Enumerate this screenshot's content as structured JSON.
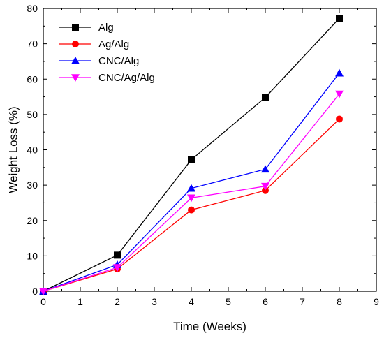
{
  "chart_data": {
    "type": "line",
    "title": "",
    "xlabel": "Time (Weeks)",
    "ylabel": "Weight Loss (%)",
    "xlim": [
      0,
      9
    ],
    "ylim": [
      0,
      80
    ],
    "x_ticks": [
      0,
      1,
      2,
      3,
      4,
      5,
      6,
      7,
      8,
      9
    ],
    "y_ticks": [
      0,
      10,
      20,
      30,
      40,
      50,
      60,
      70,
      80
    ],
    "grid": false,
    "legend_position": "top-left",
    "series": [
      {
        "name": "Alg",
        "color": "#000000",
        "marker": "square",
        "x": [
          0,
          2,
          4,
          6,
          8
        ],
        "y": [
          0,
          10.2,
          37.2,
          54.8,
          77.2
        ]
      },
      {
        "name": "Ag/Alg",
        "color": "#ff0000",
        "marker": "circle",
        "x": [
          0,
          2,
          4,
          6,
          8
        ],
        "y": [
          0,
          6.3,
          23.0,
          28.5,
          48.7
        ]
      },
      {
        "name": "CNC/Alg",
        "color": "#0000ff",
        "marker": "triangle-up",
        "x": [
          0,
          2,
          4,
          6,
          8
        ],
        "y": [
          0,
          7.5,
          29.1,
          34.5,
          61.7
        ]
      },
      {
        "name": "CNC/Ag/Alg",
        "color": "#ff00ff",
        "marker": "triangle-down",
        "x": [
          0,
          2,
          4,
          6,
          8
        ],
        "y": [
          0,
          6.7,
          26.4,
          29.7,
          55.8
        ]
      }
    ]
  }
}
